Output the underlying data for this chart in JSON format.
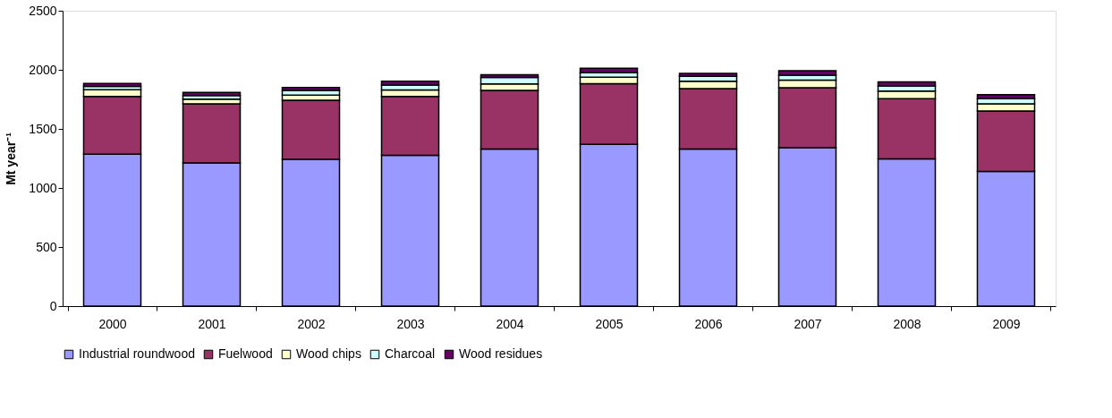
{
  "chart_data": {
    "type": "bar",
    "stacked": true,
    "ylabel": "Mt year⁻¹",
    "categories": [
      "2000",
      "2001",
      "2002",
      "2003",
      "2004",
      "2005",
      "2006",
      "2007",
      "2008",
      "2009"
    ],
    "series": [
      {
        "name": "Industrial roundwood",
        "color": "#9999ff",
        "values": [
          1286,
          1212,
          1243,
          1277,
          1329,
          1369,
          1330,
          1340,
          1246,
          1140
        ]
      },
      {
        "name": "Fuelwood",
        "color": "#993366",
        "values": [
          488,
          500,
          500,
          497,
          497,
          513,
          510,
          508,
          509,
          511
        ]
      },
      {
        "name": "Wood chips",
        "color": "#ffffcc",
        "values": [
          57,
          40,
          43,
          55,
          55,
          55,
          63,
          65,
          65,
          62
        ]
      },
      {
        "name": "Charcoal",
        "color": "#ccffff",
        "values": [
          28,
          31,
          40,
          42,
          54,
          39,
          42,
          42,
          43,
          42
        ]
      },
      {
        "name": "Wood residues",
        "color": "#660066",
        "values": [
          26,
          26,
          24,
          33,
          24,
          37,
          24,
          37,
          34,
          35
        ]
      }
    ],
    "ylim": [
      0,
      2500
    ],
    "yticks": [
      0,
      500,
      1000,
      1500,
      2000,
      2500
    ],
    "grid": false,
    "legend": "bottom"
  }
}
